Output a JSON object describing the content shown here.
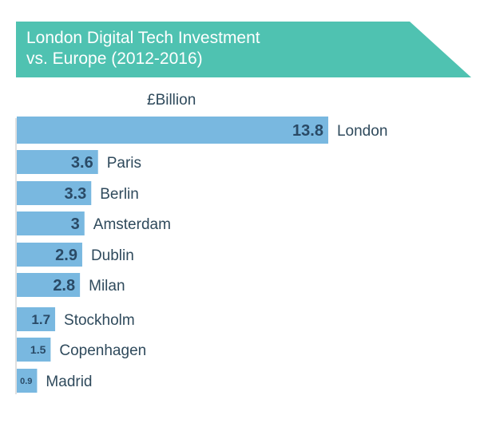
{
  "chart_data": {
    "type": "bar",
    "orientation": "horizontal",
    "title": "London Digital Tech Investment vs. Europe (2012-2016)",
    "title_lines": [
      "London Digital Tech Investment",
      "vs. Europe (2012-2016)"
    ],
    "unit_label": "£Billion",
    "categories": [
      "London",
      "Paris",
      "Berlin",
      "Amsterdam",
      "Dublin",
      "Milan",
      "Stockholm",
      "Copenhagen",
      "Madrid"
    ],
    "values": [
      13.8,
      3.6,
      3.3,
      3,
      2.9,
      2.8,
      1.7,
      1.5,
      0.9
    ],
    "value_labels": [
      "13.8",
      "3.6",
      "3.3",
      "3",
      "2.9",
      "2.8",
      "1.7",
      "1.5",
      "0.9"
    ],
    "grid": false,
    "legend": "none"
  },
  "colors": {
    "banner": "#4fc2b1",
    "bar": "#79b8e0",
    "value_text": "#2a4a66",
    "label_text": "#2f4a5c",
    "axis": "#e0e0e0"
  }
}
